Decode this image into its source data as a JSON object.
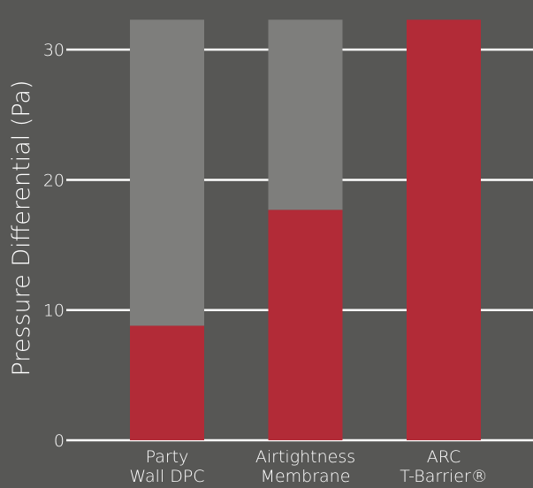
{
  "chart_data": {
    "type": "bar",
    "stacked": true,
    "ylabel": "Pressure Differential (Pa)",
    "xlabel": "",
    "ylim": [
      0,
      33
    ],
    "yticks": [
      0,
      10,
      20,
      30
    ],
    "grid": true,
    "categories": [
      [
        "Party",
        "Wall DPC"
      ],
      [
        "Airtightness",
        "Membrane"
      ],
      [
        "ARC",
        "T-Barrier®"
      ]
    ],
    "series": [
      {
        "values": [
          8.8,
          17.7,
          32.3
        ]
      },
      {
        "values": [
          23.5,
          14.6,
          0
        ]
      }
    ],
    "colors": {
      "background": "#575755",
      "primary": "#b22b37",
      "secondary": "#7e7e7c",
      "grid": "#ffffff",
      "text": "#ffffff"
    }
  }
}
